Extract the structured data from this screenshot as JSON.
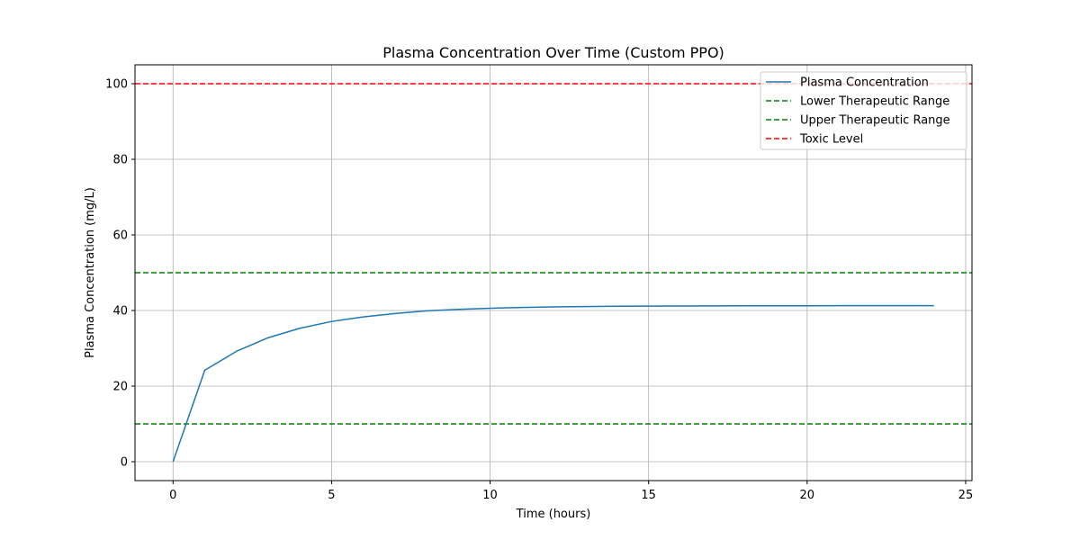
{
  "chart_data": {
    "type": "line",
    "title": "Plasma Concentration Over Time (Custom PPO)",
    "xlabel": "Time (hours)",
    "ylabel": "Plasma Concentration (mg/L)",
    "xlim": [
      -1.2,
      25.2
    ],
    "ylim": [
      -5,
      105
    ],
    "xticks": [
      0,
      5,
      10,
      15,
      20,
      25
    ],
    "yticks": [
      0,
      20,
      40,
      60,
      80,
      100
    ],
    "grid": true,
    "legend_position": "top-right",
    "series": [
      {
        "name": "Plasma Concentration",
        "color": "#1f77b4",
        "style": "solid",
        "x": [
          0,
          1,
          2,
          3,
          4,
          5,
          6,
          7,
          8,
          9,
          10,
          11,
          12,
          13,
          14,
          15,
          16,
          17,
          18,
          19,
          20,
          21,
          22,
          23,
          24
        ],
        "y": [
          0,
          24.2,
          29.2,
          32.8,
          35.3,
          37.1,
          38.3,
          39.2,
          39.9,
          40.3,
          40.6,
          40.8,
          40.95,
          41.05,
          41.12,
          41.17,
          41.2,
          41.22,
          41.24,
          41.25,
          41.26,
          41.27,
          41.27,
          41.28,
          41.28
        ]
      }
    ],
    "reference_lines": [
      {
        "name": "Lower Therapeutic Range",
        "y": 10,
        "color": "#008000",
        "style": "dashed"
      },
      {
        "name": "Upper Therapeutic Range",
        "y": 50,
        "color": "#008000",
        "style": "dashed"
      },
      {
        "name": "Toxic Level",
        "y": 100,
        "color": "#ff0000",
        "style": "dashed"
      }
    ]
  }
}
